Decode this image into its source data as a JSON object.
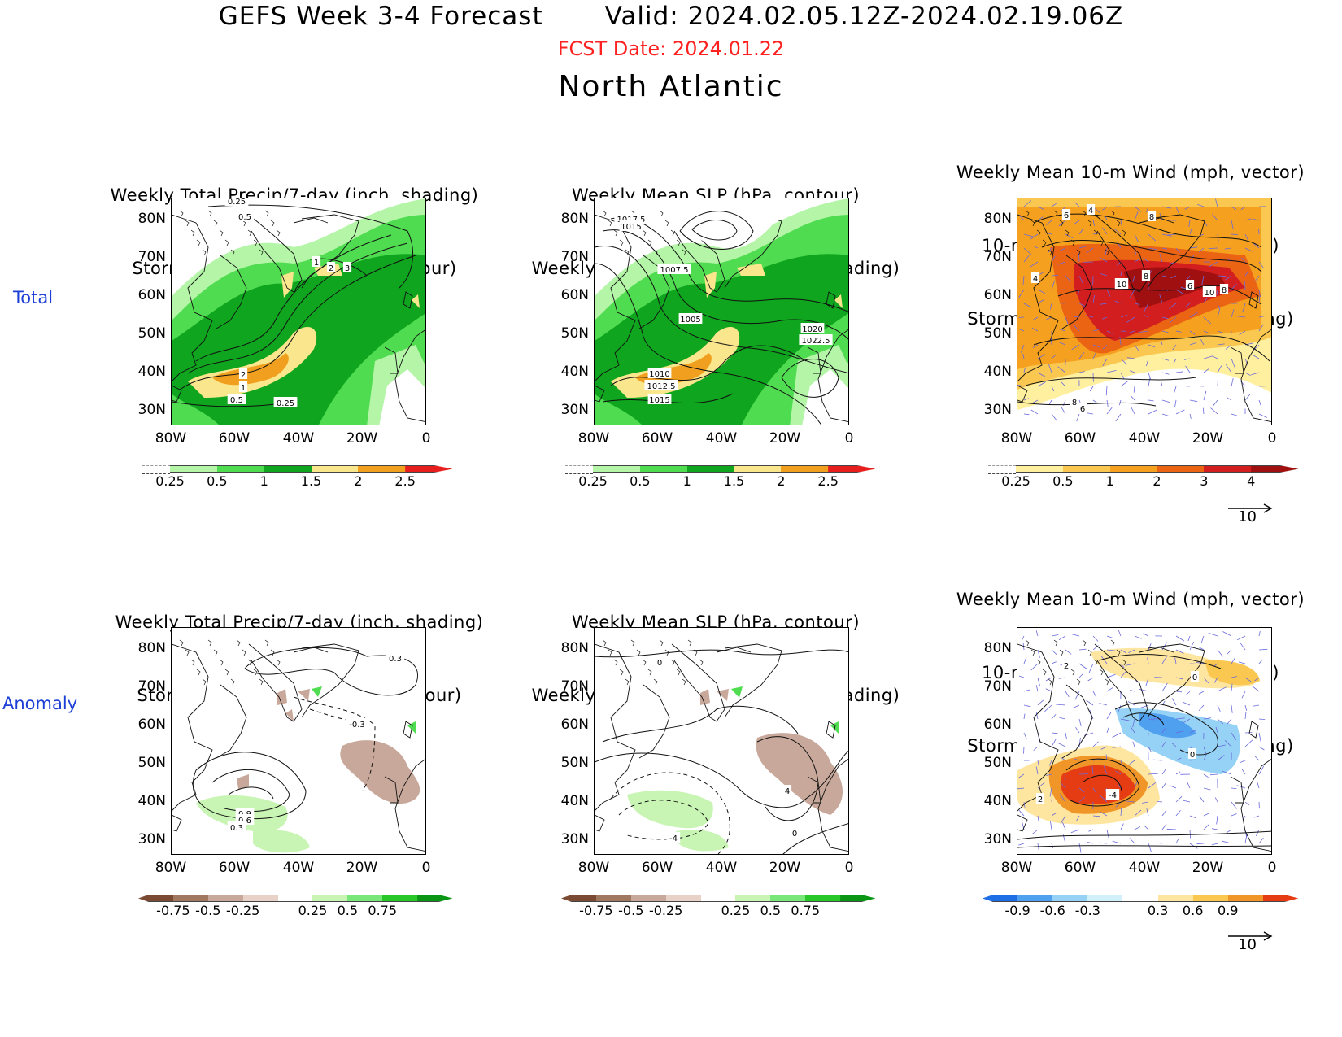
{
  "header": {
    "title": "GEFS Week 3-4 Forecast       Valid: 2024.02.05.12Z-2024.02.19.06Z",
    "fcst_date": "FCST Date: 2024.01.22",
    "region": "North Atlantic"
  },
  "row_labels": {
    "total": "Total",
    "anomaly": "Anomaly"
  },
  "axes": {
    "lat": [
      "80N",
      "70N",
      "60N",
      "50N",
      "40N",
      "30N"
    ],
    "lon": [
      "80W",
      "60W",
      "40W",
      "20W",
      "0"
    ]
  },
  "panels": {
    "t1": {
      "line1": "Weekly Total Precip/7-day (inch, shading)",
      "line2": "Storm Track Density/7-day (contour)",
      "labels": [
        "0.25",
        "0.5",
        "1",
        "2",
        "3",
        "2",
        "1",
        "0.5",
        "0.25"
      ]
    },
    "t2": {
      "line1": "Weekly Mean SLP (hPa, contour)",
      "line2": "Weekly Total Precip/7-day (inch, shading)",
      "labels": [
        "1017.5",
        "1015",
        "1007.5",
        "1005",
        "1020",
        "1022.5",
        "1010",
        "1012.5",
        "1015"
      ]
    },
    "t3": {
      "line0": "Weekly Mean 10-m Wind (mph, vector)",
      "line1": "10-m Wind Speed (mph, contour)",
      "line2": "Storm Track Density/7-day (shading)",
      "labels": [
        "6",
        "4",
        "8",
        "4",
        "10",
        "8",
        "6",
        "10",
        "8",
        "8",
        "6"
      ]
    },
    "a1": {
      "line1": "Weekly Total Precip/7-day (inch, shading)",
      "line2": "Storm Track Density/7-day (contour)",
      "labels": [
        "0.3",
        "-0.3",
        "0.9",
        "0.6",
        "0.3"
      ]
    },
    "a2": {
      "line1": "Weekly Mean SLP (hPa, contour)",
      "line2": "Weekly Total Precip/7-day (inch, shading)",
      "labels": [
        "0",
        "4",
        "0",
        "-4"
      ]
    },
    "a3": {
      "line0": "Weekly Mean 10-m Wind (mph, vector)",
      "line1": "10-m Wind Speed (mph, contour)",
      "line2": "Storm Track Density/7-day (shading)",
      "labels": [
        "2",
        "0",
        "0",
        "-4",
        "2"
      ]
    }
  },
  "colorbars": {
    "precip_total": {
      "ticks": [
        "0.25",
        "0.5",
        "1",
        "1.5",
        "2",
        "2.5"
      ],
      "colors": [
        "#b4f5a8",
        "#50dc50",
        "#0fa51e",
        "#fae68c",
        "#f0a01e",
        "#e61e1e"
      ]
    },
    "std_total": {
      "ticks": [
        "0.25",
        "0.5",
        "1",
        "2",
        "3",
        "4"
      ],
      "colors": [
        "#fff0a0",
        "#fac850",
        "#f5a01e",
        "#eb6414",
        "#d21e1e",
        "#a01010"
      ]
    },
    "precip_anom": {
      "ticks": [
        "-0.75",
        "-0.5",
        "-0.25",
        "0.25",
        "0.5",
        "0.75"
      ],
      "colors": [
        "#7a4b32",
        "#a07860",
        "#c8a89a",
        "#e8d2c8",
        "#ffffff",
        "#c8f5b4",
        "#78e678",
        "#28c828",
        "#0a9614"
      ]
    },
    "std_anom": {
      "ticks": [
        "-0.9",
        "-0.6",
        "-0.3",
        "0.3",
        "0.6",
        "0.9"
      ],
      "colors": [
        "#1e6ee6",
        "#50a0f0",
        "#96d2f5",
        "#d2f0fa",
        "#ffffff",
        "#ffe6a0",
        "#fac850",
        "#f09628",
        "#e63c14"
      ]
    }
  },
  "vector_ref": "10",
  "colors": {
    "row_label": "#1d3fd6",
    "fcst_date": "#ff2020",
    "vectors": "#6a6adc"
  }
}
